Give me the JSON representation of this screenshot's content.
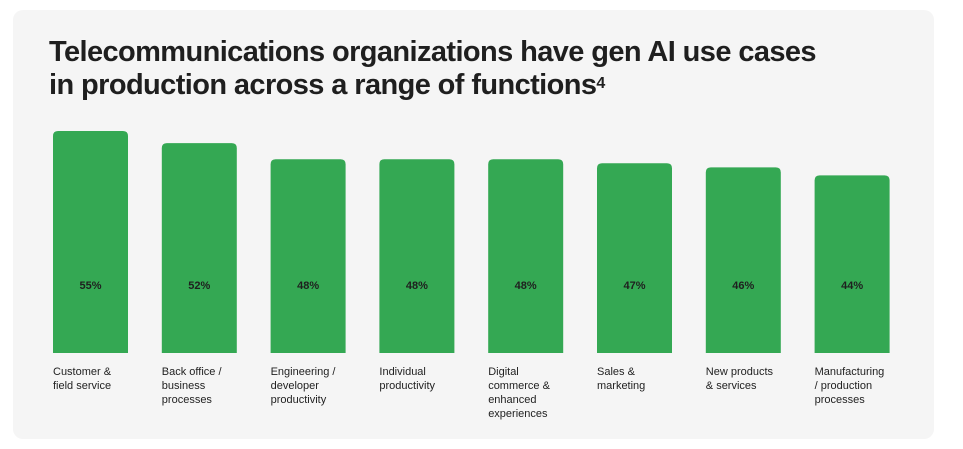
{
  "title": {
    "line1": "Telecommunications organizations have gen AI use cases",
    "line2": "in production across a range of functions",
    "footnote": "4"
  },
  "colors": {
    "bar": "#34a853",
    "background": "#f5f5f5",
    "text": "#1f1f1f"
  },
  "chart_data": {
    "type": "bar",
    "categories": [
      [
        "Customer &",
        "field service"
      ],
      [
        "Back office /",
        "business",
        "processes"
      ],
      [
        "Engineering /",
        "developer",
        "productivity"
      ],
      [
        "Individual",
        "productivity"
      ],
      [
        "Digital",
        "commerce &",
        "enhanced",
        "experiences"
      ],
      [
        "Sales &",
        "marketing"
      ],
      [
        "New products",
        "& services"
      ],
      [
        "Manufacturing",
        "/ production",
        "processes"
      ]
    ],
    "values": [
      55,
      52,
      48,
      48,
      48,
      47,
      46,
      44
    ],
    "value_labels": [
      "55%",
      "52%",
      "48%",
      "48%",
      "48%",
      "47%",
      "46%",
      "44%"
    ],
    "unit": "%",
    "grid": false,
    "legend": "none"
  }
}
